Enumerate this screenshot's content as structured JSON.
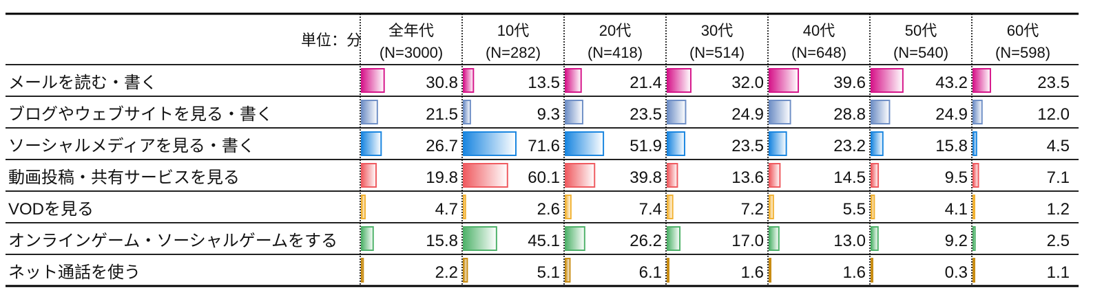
{
  "chart_data": {
    "type": "table",
    "title": "",
    "unit_label": "単位：分",
    "columns": [
      {
        "label": "全年代",
        "n": "(N=3000)"
      },
      {
        "label": "10代",
        "n": "(N=282)"
      },
      {
        "label": "20代",
        "n": "(N=418)"
      },
      {
        "label": "30代",
        "n": "(N=514)"
      },
      {
        "label": "40代",
        "n": "(N=648)"
      },
      {
        "label": "50代",
        "n": "(N=540)"
      },
      {
        "label": "60代",
        "n": "(N=598)"
      }
    ],
    "max_value": 71.6,
    "rows": [
      {
        "label": "メールを読む・書く",
        "color": "#d6168a",
        "values": [
          30.8,
          13.5,
          21.4,
          32.0,
          39.6,
          43.2,
          23.5
        ]
      },
      {
        "label": "ブログやウェブサイトを見る・書く",
        "color": "#6f8fc6",
        "values": [
          21.5,
          9.3,
          23.5,
          24.9,
          28.8,
          24.9,
          12.0
        ]
      },
      {
        "label": "ソーシャルメディアを見る・書く",
        "color": "#1a86e0",
        "values": [
          26.7,
          71.6,
          51.9,
          23.5,
          23.2,
          15.8,
          4.5
        ]
      },
      {
        "label": "動画投稿・共有サービスを見る",
        "color": "#ef5b60",
        "values": [
          19.8,
          60.1,
          39.8,
          13.6,
          14.5,
          9.5,
          7.1
        ]
      },
      {
        "label": "VODを見る",
        "color": "#f2b233",
        "values": [
          4.7,
          2.6,
          7.4,
          7.2,
          5.5,
          4.1,
          1.2
        ]
      },
      {
        "label": "オンラインゲーム・ソーシャルゲームをする",
        "color": "#4fb26a",
        "values": [
          15.8,
          45.1,
          26.2,
          17.0,
          13.0,
          9.2,
          2.5
        ]
      },
      {
        "label": "ネット通話を使う",
        "color": "#c98d14",
        "values": [
          2.2,
          5.1,
          6.1,
          1.6,
          1.6,
          0.3,
          1.1
        ]
      }
    ]
  }
}
